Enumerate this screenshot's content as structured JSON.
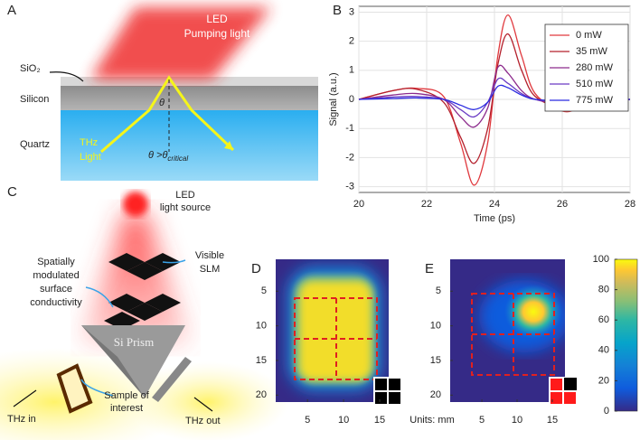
{
  "panels": {
    "A": {
      "letter": "A",
      "led": "LED",
      "pumping": "Pumping light",
      "sio2": "SiO₂",
      "silicon": "Silicon",
      "quartz": "Quartz",
      "thz": "THz",
      "light": "Light",
      "theta": "θ",
      "condition": "θ >θ",
      "condition_sub": "critical"
    },
    "C": {
      "letter": "C",
      "led": "LED",
      "source": "light source",
      "visible": "Visible",
      "slm": "SLM",
      "spatially": "Spatially",
      "modulated": "modulated",
      "surface": "surface",
      "conductivity": "conductivity",
      "prism": "Si Prism",
      "thz_in": "THz in",
      "sample": "Sample of",
      "interest": "interest",
      "thz_out": "THz out"
    }
  },
  "chart_data": [
    {
      "type": "line",
      "letter": "B",
      "xlabel": "Time (ps)",
      "ylabel": "Signal (a.u.)",
      "x": [
        20,
        21,
        21.7,
        22.5,
        23,
        23.4,
        23.8,
        24.1,
        24.4,
        24.8,
        25.2,
        26,
        26.5,
        27,
        28
      ],
      "series": [
        {
          "name": "0 mW",
          "color": "#e0393e",
          "values": [
            0,
            0.3,
            0.38,
            0.1,
            -1.5,
            -2.95,
            -1.5,
            1.5,
            2.9,
            1.5,
            0.2,
            -0.4,
            -0.3,
            -0.1,
            0
          ]
        },
        {
          "name": "35 mW",
          "color": "#b4202c",
          "values": [
            0,
            0.3,
            0.35,
            -0.1,
            -1.3,
            -2.2,
            -1.0,
            1.2,
            2.25,
            1.0,
            0.1,
            -0.3,
            -0.25,
            -0.1,
            0
          ]
        },
        {
          "name": "280 mW",
          "color": "#8c2a8c",
          "values": [
            0,
            0.15,
            0.2,
            0,
            -0.6,
            -0.95,
            -0.3,
            1.1,
            0.9,
            0.3,
            0,
            -0.15,
            -0.12,
            -0.05,
            0
          ]
        },
        {
          "name": "510 mW",
          "color": "#6a3bc4",
          "values": [
            0,
            0.08,
            0.1,
            0,
            -0.35,
            -0.6,
            -0.1,
            0.7,
            0.55,
            0.2,
            0,
            -0.08,
            -0.06,
            -0.02,
            0
          ]
        },
        {
          "name": "775 mW",
          "color": "#2a2ae0",
          "values": [
            0,
            0.03,
            0.05,
            0,
            -0.2,
            -0.35,
            -0.1,
            0.45,
            0.4,
            0.15,
            0,
            -0.05,
            -0.03,
            -0.01,
            0
          ]
        }
      ],
      "xlim": [
        20,
        28
      ],
      "xticks": [
        20,
        22,
        24,
        26,
        28
      ],
      "ylim": [
        -3.2,
        3.2
      ],
      "yticks": [
        -3,
        -2,
        -1,
        0,
        1,
        2,
        3
      ],
      "grid": true,
      "legend": "top-right"
    },
    {
      "type": "heatmap",
      "letter": "D",
      "xlabel": "Units: mm",
      "xlim": [
        0.6,
        16.25
      ],
      "xticks": [
        5,
        10,
        15
      ],
      "ylim": [
        0.4,
        21
      ],
      "yticks": [
        5,
        10,
        15,
        20
      ],
      "yreverse": true
    },
    {
      "type": "heatmap",
      "letter": "E",
      "xlim": [
        0.5,
        16.8
      ],
      "xticks": [
        5,
        10,
        15
      ],
      "ylim": [
        0.4,
        21
      ],
      "yticks": [
        5,
        10,
        15,
        20
      ],
      "yreverse": true,
      "colorbar": {
        "lim": [
          0,
          100
        ],
        "ticks": [
          0,
          20,
          40,
          60,
          80,
          100
        ]
      }
    }
  ]
}
